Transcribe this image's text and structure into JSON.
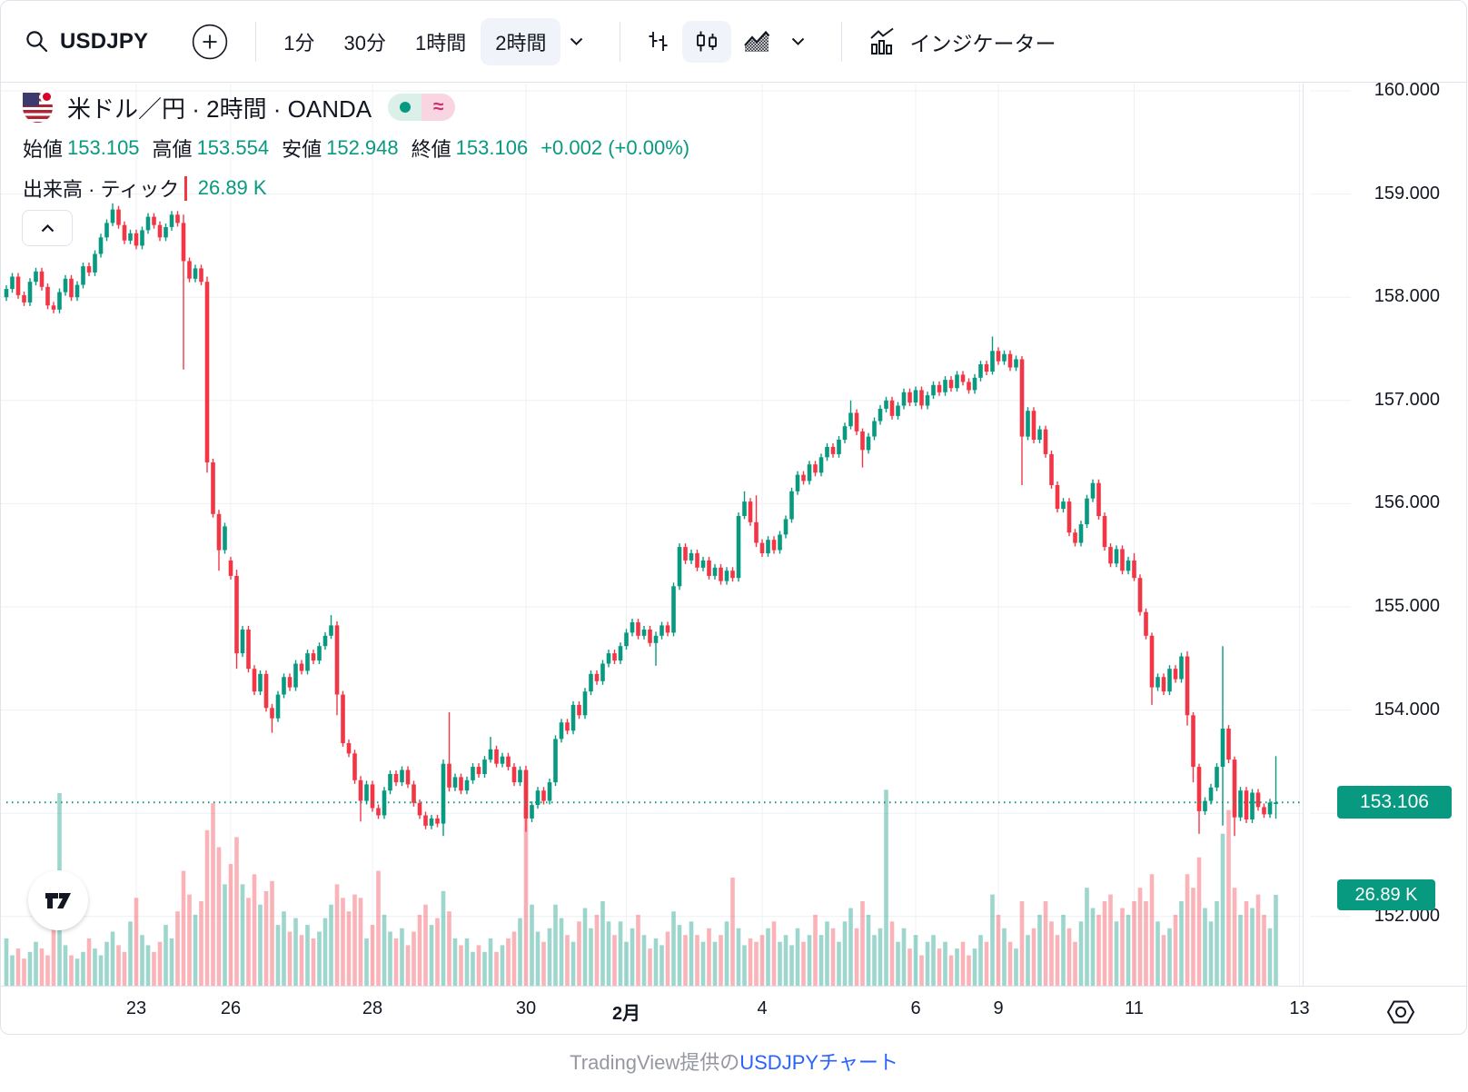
{
  "toolbar": {
    "symbol": "USDJPY",
    "intervals": [
      {
        "label": "1分",
        "selected": false
      },
      {
        "label": "30分",
        "selected": false
      },
      {
        "label": "1時間",
        "selected": false
      },
      {
        "label": "2時間",
        "selected": true
      }
    ],
    "chart_types": [
      "bars-icon",
      "candles-icon",
      "area-icon"
    ],
    "selected_chart_type": "candles-icon",
    "indicators_label": "インジケーター"
  },
  "legend": {
    "title": "米ドル／円 · 2時間 · OANDA",
    "market_toggle": {
      "up_dot": "●",
      "delay_symbol": "≈"
    },
    "ohlc": [
      {
        "label": "始値",
        "value": "153.105"
      },
      {
        "label": "高値",
        "value": "153.554"
      },
      {
        "label": "安値",
        "value": "152.948"
      },
      {
        "label": "終値",
        "value": "153.106"
      }
    ],
    "change": "+0.002 (+0.00%)",
    "volume_label": "出来高 · ティック",
    "volume_value": "26.89 K"
  },
  "price_axis": {
    "ticks": [
      "160.000",
      "159.000",
      "158.000",
      "157.000",
      "156.000",
      "155.000",
      "154.000",
      "153.000",
      "152.000"
    ],
    "price_badge": "153.106",
    "volume_badge": "26.89 K"
  },
  "time_axis": {
    "ticks": [
      {
        "label": "23",
        "i": 22,
        "bold": false
      },
      {
        "label": "26",
        "i": 38,
        "bold": false
      },
      {
        "label": "28",
        "i": 62,
        "bold": false
      },
      {
        "label": "30",
        "i": 88,
        "bold": false
      },
      {
        "label": "2月",
        "i": 105,
        "bold": true
      },
      {
        "label": "4",
        "i": 128,
        "bold": false
      },
      {
        "label": "6",
        "i": 154,
        "bold": false
      },
      {
        "label": "9",
        "i": 168,
        "bold": false
      },
      {
        "label": "11",
        "i": 191,
        "bold": false
      },
      {
        "label": "13",
        "i": 219,
        "bold": false
      }
    ]
  },
  "footer": {
    "prefix": "TradingView提供の",
    "link": "USDJPYチャート"
  },
  "colors": {
    "up": "#089981",
    "down": "#f23645",
    "vol_up": "rgba(8,153,129,0.40)",
    "vol_down": "rgba(242,54,69,0.38)",
    "accent": "#089981",
    "link": "#2962ff",
    "grid": "#eef0f3",
    "border": "#e0e3eb",
    "axis_text": "#131722",
    "muted": "#9598a1"
  },
  "chart_data": {
    "type": "candlestick",
    "title": "米ドル／円 2時間足 OANDA",
    "interval": "2時間",
    "y_axis": {
      "min": 151.35,
      "max": 160.08,
      "grid_step": 1.0,
      "tick_values": [
        160,
        159,
        158,
        157,
        156,
        155,
        154,
        153,
        152
      ]
    },
    "last_price": 153.106,
    "last_candle": {
      "open": 153.105,
      "high": 153.554,
      "low": 152.948,
      "close": 153.106
    },
    "last_volume_k": 26.89,
    "first_open": 158.0,
    "default_wick": 0.035,
    "closes": [
      158.08,
      158.2,
      158.02,
      157.95,
      158.15,
      158.25,
      158.1,
      157.92,
      157.88,
      158.05,
      158.18,
      158.0,
      158.12,
      158.3,
      158.24,
      158.42,
      158.58,
      158.72,
      158.85,
      158.7,
      158.55,
      158.62,
      158.5,
      158.65,
      158.78,
      158.7,
      158.58,
      158.68,
      158.8,
      158.72,
      158.35,
      158.18,
      158.28,
      158.15,
      156.4,
      155.9,
      155.55,
      155.78,
      155.3,
      154.55,
      154.78,
      154.4,
      154.18,
      154.35,
      154.02,
      153.92,
      154.15,
      154.32,
      154.22,
      154.45,
      154.38,
      154.55,
      154.48,
      154.62,
      154.72,
      154.82,
      154.15,
      153.68,
      153.58,
      153.32,
      153.12,
      153.28,
      153.05,
      152.98,
      153.22,
      153.38,
      153.3,
      153.42,
      153.28,
      153.1,
      152.98,
      152.88,
      152.95,
      152.9,
      153.48,
      153.25,
      153.35,
      153.22,
      153.32,
      153.45,
      153.38,
      153.52,
      153.62,
      153.48,
      153.55,
      153.45,
      153.3,
      153.42,
      152.95,
      153.08,
      153.22,
      153.12,
      153.3,
      153.72,
      153.88,
      153.8,
      154.05,
      153.95,
      154.18,
      154.35,
      154.28,
      154.45,
      154.55,
      154.48,
      154.62,
      154.75,
      154.85,
      154.72,
      154.78,
      154.65,
      154.72,
      154.82,
      154.75,
      155.2,
      155.58,
      155.45,
      155.52,
      155.38,
      155.45,
      155.3,
      155.38,
      155.25,
      155.35,
      155.28,
      155.88,
      156.02,
      155.82,
      155.62,
      155.52,
      155.65,
      155.55,
      155.7,
      155.85,
      156.12,
      156.28,
      156.22,
      156.38,
      156.3,
      156.45,
      156.55,
      156.48,
      156.62,
      156.75,
      156.88,
      156.7,
      156.52,
      156.65,
      156.8,
      156.92,
      157.0,
      156.85,
      156.95,
      157.08,
      156.98,
      157.1,
      156.95,
      157.05,
      157.15,
      157.08,
      157.2,
      157.12,
      157.25,
      157.18,
      157.1,
      157.22,
      157.35,
      157.28,
      157.48,
      157.38,
      157.45,
      157.32,
      157.4,
      156.65,
      156.9,
      156.62,
      156.72,
      156.48,
      156.18,
      155.95,
      156.02,
      155.72,
      155.62,
      155.8,
      156.05,
      156.2,
      155.88,
      155.58,
      155.42,
      155.56,
      155.35,
      155.45,
      155.28,
      154.95,
      154.72,
      154.22,
      154.32,
      154.18,
      154.4,
      154.3,
      154.52,
      153.95,
      153.45,
      153.02,
      153.12,
      153.25,
      153.45,
      153.82,
      153.52,
      152.96,
      153.22,
      152.94,
      153.2,
      153.06,
      152.99,
      153.105,
      153.106
    ],
    "open_overrides": {
      "38": 155.45
    },
    "wick_overrides": {
      "18": [
        0.06,
        0.03
      ],
      "30": [
        0.08,
        1.05
      ],
      "34": [
        0.05,
        0.1
      ],
      "36": [
        0.04,
        0.2
      ],
      "39": [
        0.06,
        0.15
      ],
      "45": [
        0.04,
        0.14
      ],
      "55": [
        0.1,
        0.03
      ],
      "56": [
        0.04,
        0.2
      ],
      "60": [
        0.04,
        0.2
      ],
      "74": [
        0.04,
        0.12
      ],
      "75": [
        0.5,
        0.04
      ],
      "82": [
        0.12,
        0.03
      ],
      "88": [
        0.04,
        0.13
      ],
      "110": [
        0.04,
        0.22
      ],
      "125": [
        0.1,
        0.03
      ],
      "127": [
        0.26,
        0.04
      ],
      "143": [
        0.12,
        0.03
      ],
      "145": [
        0.03,
        0.17
      ],
      "167": [
        0.14,
        0.03
      ],
      "172": [
        0.03,
        0.47
      ],
      "191": [
        0.07,
        0.03
      ],
      "194": [
        0.03,
        0.17
      ],
      "200": [
        0.05,
        0.1
      ],
      "201": [
        0.03,
        0.15
      ],
      "202": [
        0.03,
        0.22
      ],
      "206": [
        0.8,
        0.57
      ],
      "208": [
        0.03,
        0.18
      ],
      "215": [
        0.448,
        0.157
      ]
    },
    "volumes_k": [
      14,
      9,
      11,
      8,
      10,
      13,
      11,
      9,
      18,
      57,
      12,
      9,
      8,
      10,
      14,
      11,
      9,
      13,
      16,
      12,
      10,
      19,
      26,
      15,
      12,
      10,
      13,
      18,
      14,
      22,
      34,
      27,
      21,
      25,
      46,
      54,
      41,
      30,
      36,
      44,
      30,
      26,
      33,
      24,
      28,
      31,
      18,
      22,
      16,
      20,
      15,
      18,
      14,
      16,
      20,
      24,
      30,
      26,
      22,
      27,
      26,
      14,
      18,
      34,
      21,
      16,
      14,
      17,
      12,
      16,
      21,
      24,
      18,
      20,
      28,
      22,
      14,
      12,
      14,
      10,
      12,
      10,
      14,
      10,
      12,
      14,
      16,
      20,
      60,
      24,
      16,
      13,
      17,
      24,
      20,
      15,
      13,
      19,
      23,
      17,
      21,
      25,
      19,
      15,
      19,
      13,
      17,
      21,
      15,
      11,
      14,
      12,
      16,
      22,
      18,
      15,
      19,
      15,
      13,
      17,
      13,
      15,
      19,
      32,
      17,
      12,
      14,
      13,
      15,
      17,
      19,
      13,
      15,
      12,
      17,
      13,
      15,
      21,
      15,
      19,
      17,
      13,
      19,
      23,
      17,
      25,
      21,
      15,
      17,
      58,
      19,
      13,
      17,
      11,
      15,
      9,
      13,
      15,
      11,
      13,
      9,
      11,
      13,
      9,
      11,
      15,
      13,
      27,
      21,
      17,
      13,
      11,
      25,
      15,
      17,
      21,
      25,
      19,
      15,
      21,
      17,
      13,
      19,
      29,
      23,
      21,
      25,
      27,
      19,
      23,
      21,
      25,
      29,
      25,
      33,
      19,
      15,
      17,
      21,
      25,
      33,
      29,
      38,
      23,
      19,
      25,
      45,
      52,
      29,
      21,
      25,
      23,
      27,
      21,
      17,
      26.89
    ]
  }
}
